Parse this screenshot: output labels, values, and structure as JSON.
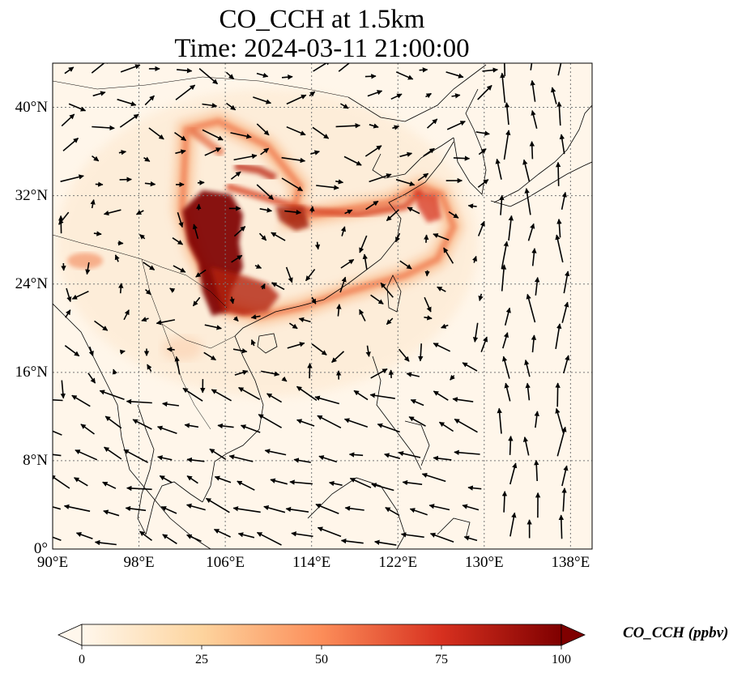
{
  "title": {
    "line1": "CO_CCH at 1.5km",
    "line2": "Time: 2024-03-11 21:00:00"
  },
  "map": {
    "lon_range": [
      90,
      140
    ],
    "lat_range": [
      0,
      44
    ],
    "gridlines": "dotted",
    "lon_ticks": [
      {
        "value": 90,
        "label": "90°E"
      },
      {
        "value": 98,
        "label": "98°E"
      },
      {
        "value": 106,
        "label": "106°E"
      },
      {
        "value": 114,
        "label": "114°E"
      },
      {
        "value": 122,
        "label": "122°E"
      },
      {
        "value": 130,
        "label": "130°E"
      },
      {
        "value": 138,
        "label": "138°E"
      }
    ],
    "lat_ticks": [
      {
        "value": 0,
        "label": "0°"
      },
      {
        "value": 8,
        "label": "8°N"
      },
      {
        "value": 16,
        "label": "16°N"
      },
      {
        "value": 24,
        "label": "24°N"
      },
      {
        "value": 32,
        "label": "32°N"
      },
      {
        "value": 40,
        "label": "40°N"
      }
    ],
    "field": "CO concentration, high values over Sichuan Basin / southern China, plume extending east to East China Sea and Korea",
    "wind_vectors": "black arrows"
  },
  "colorbar": {
    "label": "CO_CCH (ppbv)",
    "colormap": "OrRd",
    "range": [
      0,
      100
    ],
    "extend": "both",
    "ticks": [
      {
        "value": 0,
        "label": "0"
      },
      {
        "value": 25,
        "label": "25"
      },
      {
        "value": 50,
        "label": "50"
      },
      {
        "value": 75,
        "label": "75"
      },
      {
        "value": 100,
        "label": "100"
      }
    ],
    "colors": [
      "#fff7ec",
      "#fdd49e",
      "#fc8d59",
      "#d7301f",
      "#7f0000"
    ]
  }
}
